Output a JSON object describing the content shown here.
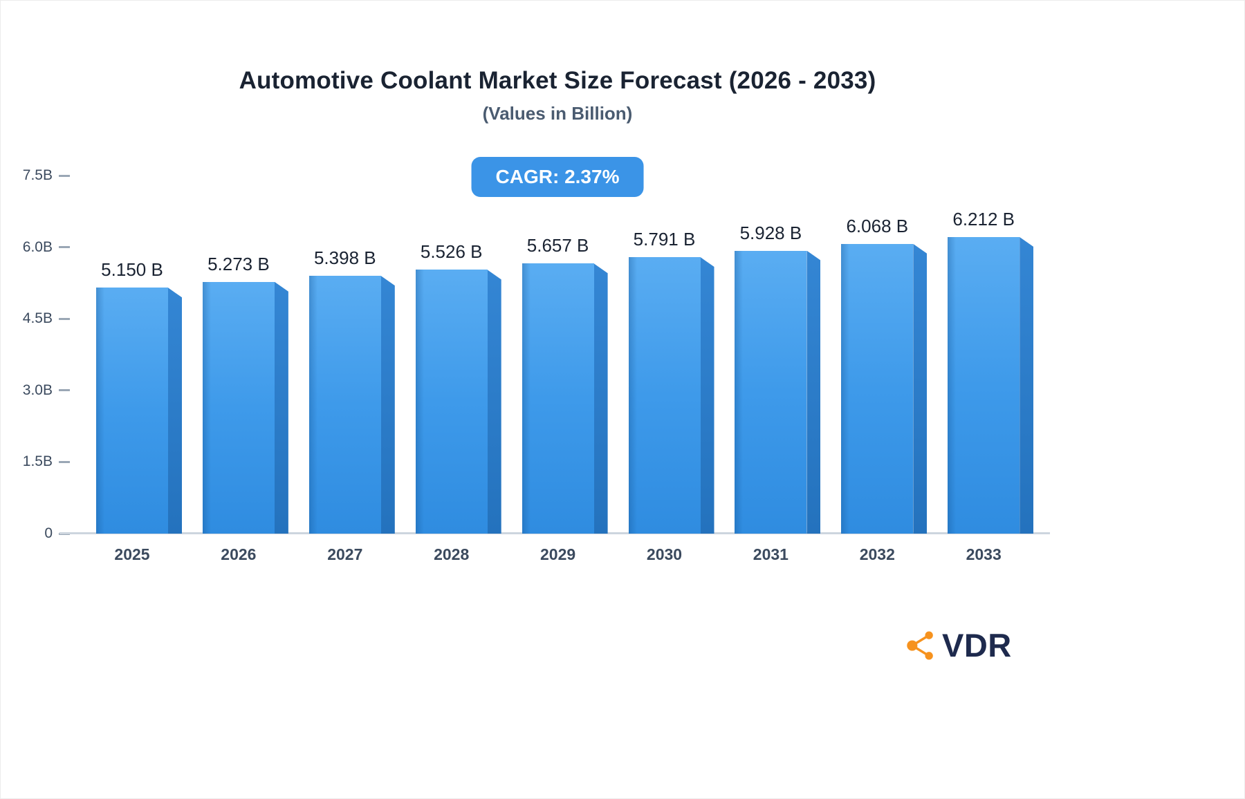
{
  "header": {
    "title": "Automotive Coolant Market Size Forecast (2026 - 2033)",
    "subtitle": "(Values in Billion)"
  },
  "badge": {
    "label": "CAGR: 2.37%"
  },
  "chart_data": {
    "type": "bar",
    "title": "Automotive Coolant Market Size Forecast (2026 - 2033)",
    "subtitle": "(Values in Billion)",
    "categories": [
      "2025",
      "2026",
      "2027",
      "2028",
      "2029",
      "2030",
      "2031",
      "2032",
      "2033"
    ],
    "values": [
      5.15,
      5.273,
      5.398,
      5.526,
      5.657,
      5.791,
      5.928,
      6.068,
      6.212
    ],
    "value_labels": [
      "5.150 B",
      "5.273 B",
      "5.398 B",
      "5.526 B",
      "5.657 B",
      "5.791 B",
      "5.928 B",
      "6.068 B",
      "6.212 B"
    ],
    "unit": "Billion",
    "xlabel": "",
    "ylabel": "",
    "ylim": [
      0,
      7.5
    ],
    "yticks": [
      {
        "value": 0,
        "label": "0"
      },
      {
        "value": 1.5,
        "label": "1.5B"
      },
      {
        "value": 3.0,
        "label": "3.0B"
      },
      {
        "value": 4.5,
        "label": "4.5B"
      },
      {
        "value": 6.0,
        "label": "6.0B"
      },
      {
        "value": 7.5,
        "label": "7.5B"
      }
    ],
    "grid": false,
    "legend": false,
    "annotations": [
      "CAGR: 2.37%"
    ],
    "bar_color": "#3e9aea",
    "bar_side_color": "#2878c6",
    "badge_color": "#3b94e7"
  },
  "logo": {
    "text": "VDR",
    "icon": "network-nodes-icon",
    "icon_color": "#F6921E",
    "text_color": "#1E2A4D"
  }
}
